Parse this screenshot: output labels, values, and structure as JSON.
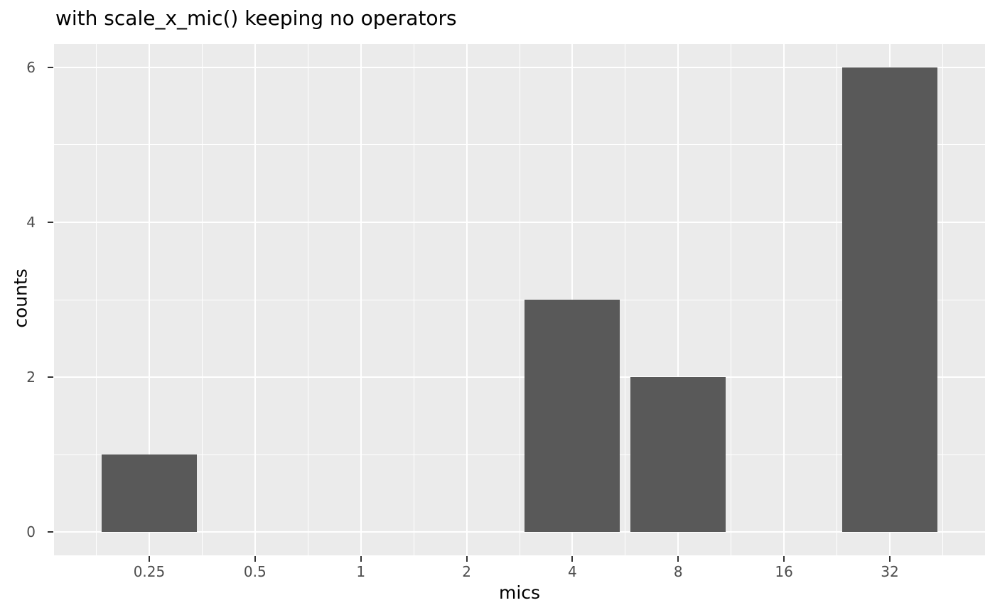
{
  "chart_data": {
    "type": "bar",
    "title": "with scale_x_mic() keeping no operators",
    "xlabel": "mics",
    "ylabel": "counts",
    "x_scale": "log2",
    "x_ticks": [
      0.25,
      0.5,
      1,
      2,
      4,
      8,
      16,
      32
    ],
    "x_tick_labels": [
      "0.25",
      "0.5",
      "1",
      "2",
      "4",
      "8",
      "16",
      "32"
    ],
    "y_ticks": [
      0,
      2,
      4,
      6
    ],
    "y_tick_labels": [
      "0",
      "2",
      "4",
      "6"
    ],
    "ylim": [
      0,
      6
    ],
    "bars": [
      {
        "mic": 0.25,
        "count": 1
      },
      {
        "mic": 4,
        "count": 3
      },
      {
        "mic": 8,
        "count": 2
      },
      {
        "mic": 32,
        "count": 6
      }
    ],
    "bar_width_log2_units": 0.9,
    "legend_position": "none",
    "grid": "major-and-minor"
  },
  "colors": {
    "background": "#FFFFFF",
    "panel_bg": "#EBEBEB",
    "grid_major": "#FFFFFF",
    "grid_minor": "#FFFFFF",
    "bar_fill": "#595959",
    "tick_mark": "#333333",
    "tick_text": "#4D4D4D",
    "title_text": "#000000"
  }
}
